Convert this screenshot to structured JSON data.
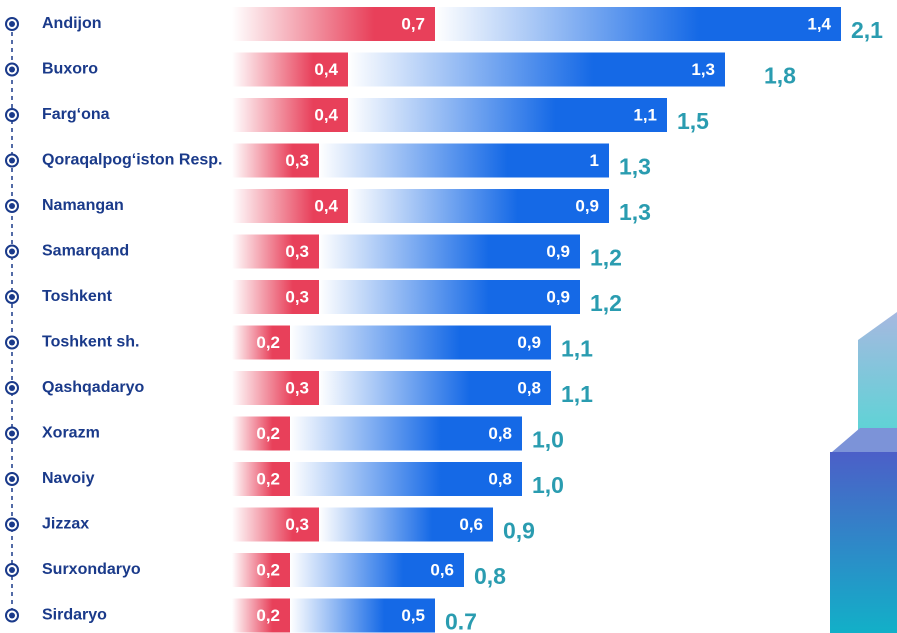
{
  "chart_data": {
    "type": "bar",
    "categories": [
      "Andijon",
      "Buxoro",
      "Farg‘ona",
      "Qoraqalpog‘iston Resp.",
      "Namangan",
      "Samarqand",
      "Toshkent",
      "Toshkent sh.",
      "Qashqadaryo",
      "Xorazm",
      "Navoiy",
      "Jizzax",
      "Surxondaryo",
      "Sirdaryo"
    ],
    "series": [
      {
        "color": "#e8405a",
        "values": [
          0.7,
          0.4,
          0.4,
          0.3,
          0.4,
          0.3,
          0.3,
          0.2,
          0.3,
          0.2,
          0.2,
          0.3,
          0.2,
          0.2
        ],
        "value_labels": [
          "0,7",
          "0,4",
          "0,4",
          "0,3",
          "0,4",
          "0,3",
          "0,3",
          "0,2",
          "0,3",
          "0,2",
          "0,2",
          "0,3",
          "0,2",
          "0,2"
        ]
      },
      {
        "color": "#1569e6",
        "values": [
          1.4,
          1.3,
          1.1,
          1,
          0.9,
          0.9,
          0.9,
          0.9,
          0.8,
          0.8,
          0.8,
          0.6,
          0.6,
          0.5
        ],
        "value_labels": [
          "1,4",
          "1,3",
          "1,1",
          "1",
          "0,9",
          "0,9",
          "0,9",
          "0,9",
          "0,8",
          "0,8",
          "0,8",
          "0,6",
          "0,6",
          "0,5"
        ]
      }
    ],
    "totals": [
      2.1,
      1.8,
      1.5,
      1.3,
      1.3,
      1.2,
      1.2,
      1.1,
      1.1,
      1.0,
      1.0,
      0.9,
      0.8,
      0.7
    ],
    "total_labels": [
      "2,1",
      "1,8",
      "1,5",
      "1,3",
      "1,3",
      "1,2",
      "1,2",
      "1,1",
      "1,1",
      "1,0",
      "1,0",
      "0,9",
      "0,8",
      "0.7"
    ],
    "total_color": "#2a9cb0"
  }
}
